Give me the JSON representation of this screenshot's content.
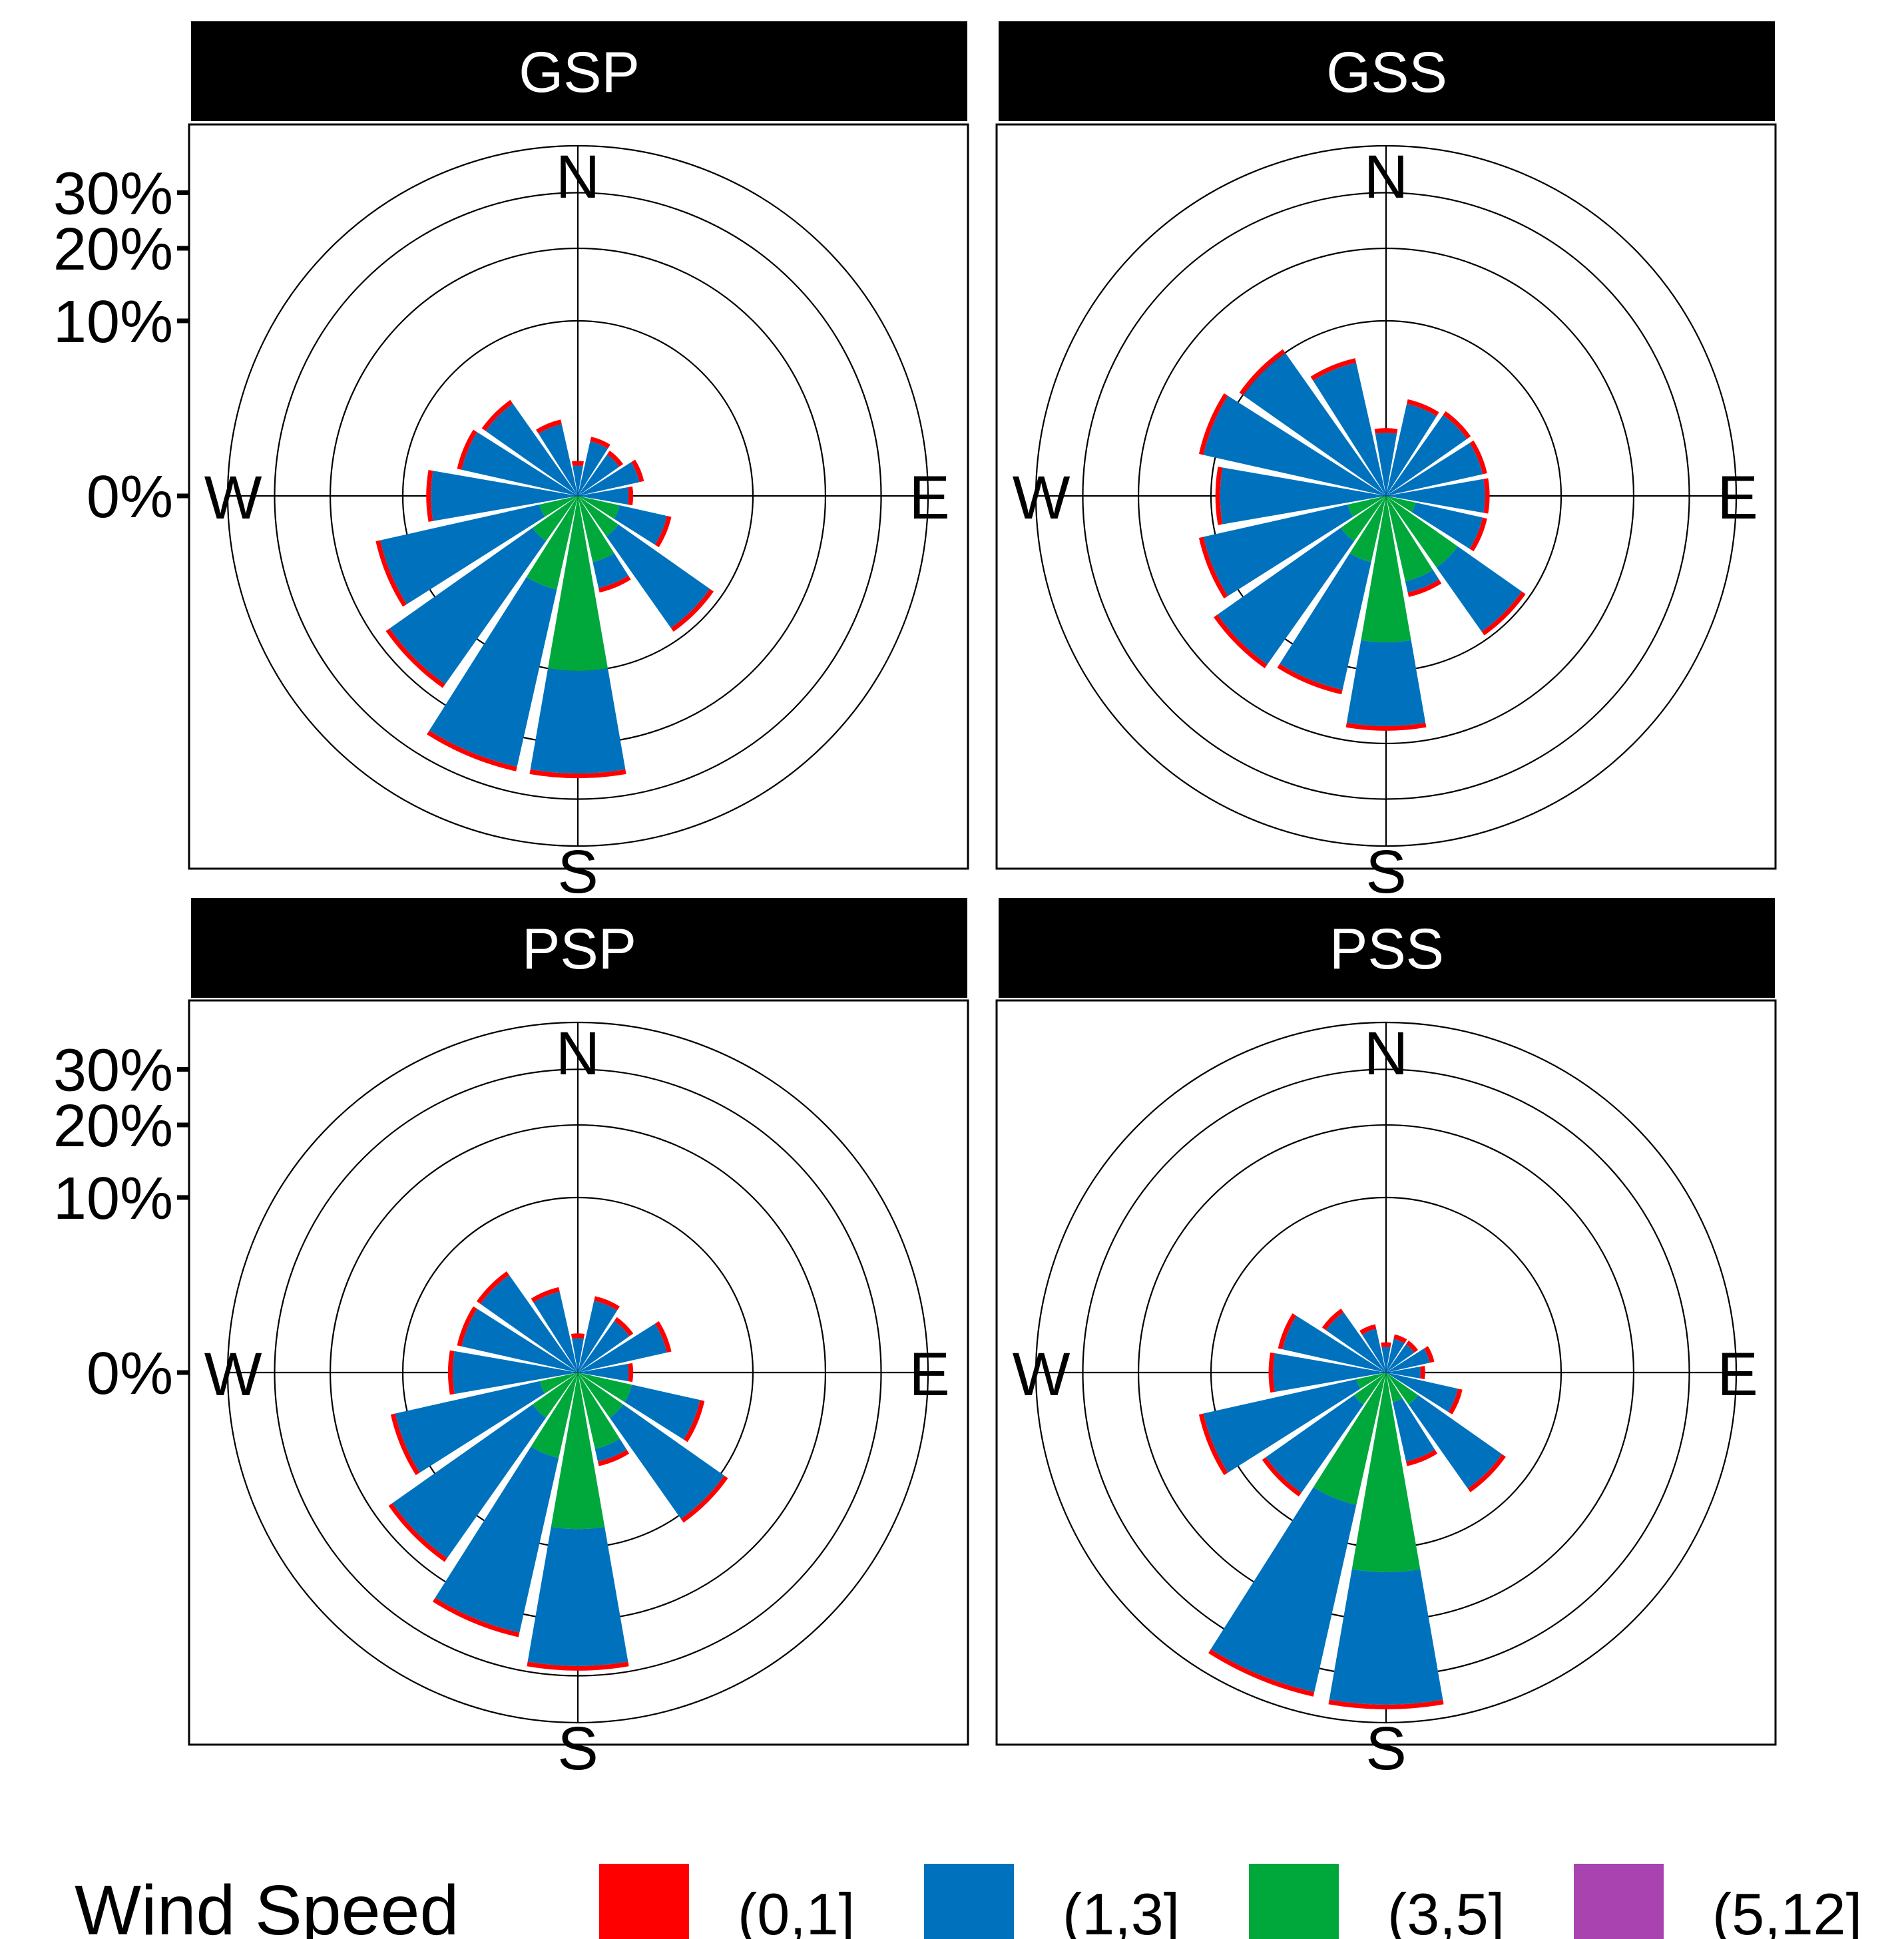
{
  "chart_data": {
    "type": "wind-rose",
    "facets": [
      {
        "name": "GSP",
        "bins": [
          {
            "dir": "N",
            "total": 0.4,
            "green": 0.0
          },
          {
            "dir": "NNE",
            "total": 1.2,
            "green": 0.0
          },
          {
            "dir": "NE",
            "total": 1.0,
            "green": 0.0
          },
          {
            "dir": "ENE",
            "total": 1.5,
            "green": 0.0
          },
          {
            "dir": "E",
            "total": 1.0,
            "green": 0.0
          },
          {
            "dir": "ESE",
            "total": 3.0,
            "green": 0.6
          },
          {
            "dir": "SE",
            "total": 9.0,
            "green": 0.8
          },
          {
            "dir": "SSE",
            "total": 3.2,
            "green": 1.5
          },
          {
            "dir": "S",
            "total": 26.0,
            "green": 10.0
          },
          {
            "dir": "SSW",
            "total": 26.0,
            "green": 3.0
          },
          {
            "dir": "SW",
            "total": 18.0,
            "green": 1.0
          },
          {
            "dir": "WSW",
            "total": 14.0,
            "green": 0.5
          },
          {
            "dir": "W",
            "total": 7.5,
            "green": 0.0
          },
          {
            "dir": "WNW",
            "total": 5.0,
            "green": 0.0
          },
          {
            "dir": "NW",
            "total": 4.5,
            "green": 0.0
          },
          {
            "dir": "NNW",
            "total": 2.0,
            "green": 0.0
          }
        ]
      },
      {
        "name": "GSS",
        "bins": [
          {
            "dir": "N",
            "total": 1.5,
            "green": 0.0
          },
          {
            "dir": "NNE",
            "total": 3.2,
            "green": 0.0
          },
          {
            "dir": "NE",
            "total": 3.5,
            "green": 0.0
          },
          {
            "dir": "ENE",
            "total": 3.5,
            "green": 0.0
          },
          {
            "dir": "E",
            "total": 3.5,
            "green": 0.0
          },
          {
            "dir": "ESE",
            "total": 3.5,
            "green": 0.3
          },
          {
            "dir": "SE",
            "total": 9.5,
            "green": 2.5
          },
          {
            "dir": "SSE",
            "total": 3.5,
            "green": 2.5
          },
          {
            "dir": "S",
            "total": 18.0,
            "green": 7.0
          },
          {
            "dir": "SSW",
            "total": 13.5,
            "green": 1.5
          },
          {
            "dir": "SW",
            "total": 14.5,
            "green": 1.0
          },
          {
            "dir": "WSW",
            "total": 12.0,
            "green": 0.5
          },
          {
            "dir": "W",
            "total": 9.5,
            "green": 0.0
          },
          {
            "dir": "WNW",
            "total": 12.0,
            "green": 0.0
          },
          {
            "dir": "NW",
            "total": 10.5,
            "green": 0.0
          },
          {
            "dir": "NNW",
            "total": 6.5,
            "green": 0.0
          }
        ]
      },
      {
        "name": "PSP",
        "bins": [
          {
            "dir": "N",
            "total": 0.5,
            "green": 0.0
          },
          {
            "dir": "NNE",
            "total": 2.0,
            "green": 0.0
          },
          {
            "dir": "NE",
            "total": 1.5,
            "green": 0.0
          },
          {
            "dir": "ENE",
            "total": 3.0,
            "green": 0.0
          },
          {
            "dir": "E",
            "total": 1.0,
            "green": 0.0
          },
          {
            "dir": "ESE",
            "total": 5.5,
            "green": 1.0
          },
          {
            "dir": "SE",
            "total": 11.0,
            "green": 1.0
          },
          {
            "dir": "SSE",
            "total": 3.0,
            "green": 2.0
          },
          {
            "dir": "S",
            "total": 29.0,
            "green": 8.0
          },
          {
            "dir": "SSW",
            "total": 24.0,
            "green": 2.5
          },
          {
            "dir": "SW",
            "total": 17.5,
            "green": 1.0
          },
          {
            "dir": "WSW",
            "total": 12.0,
            "green": 0.5
          },
          {
            "dir": "W",
            "total": 5.5,
            "green": 0.0
          },
          {
            "dir": "WNW",
            "total": 5.0,
            "green": 0.0
          },
          {
            "dir": "NW",
            "total": 5.0,
            "green": 0.0
          },
          {
            "dir": "NNW",
            "total": 2.5,
            "green": 0.0
          }
        ]
      },
      {
        "name": "PSS",
        "bins": [
          {
            "dir": "N",
            "total": 0.3,
            "green": 0.0
          },
          {
            "dir": "NNE",
            "total": 0.5,
            "green": 0.0
          },
          {
            "dir": "NE",
            "total": 0.5,
            "green": 0.0
          },
          {
            "dir": "ENE",
            "total": 0.8,
            "green": 0.0
          },
          {
            "dir": "E",
            "total": 0.5,
            "green": 0.0
          },
          {
            "dir": "ESE",
            "total": 2.0,
            "green": 0.0
          },
          {
            "dir": "SE",
            "total": 7.0,
            "green": 0.5
          },
          {
            "dir": "SSE",
            "total": 3.0,
            "green": 0.3
          },
          {
            "dir": "S",
            "total": 37.0,
            "green": 13.0
          },
          {
            "dir": "SSW",
            "total": 36.0,
            "green": 6.0
          },
          {
            "dir": "SW",
            "total": 7.5,
            "green": 0.5
          },
          {
            "dir": "WSW",
            "total": 12.0,
            "green": 0.3
          },
          {
            "dir": "W",
            "total": 4.5,
            "green": 0.0
          },
          {
            "dir": "WNW",
            "total": 4.0,
            "green": 0.0
          },
          {
            "dir": "NW",
            "total": 2.0,
            "green": 0.0
          },
          {
            "dir": "NNW",
            "total": 0.8,
            "green": 0.0
          }
        ]
      }
    ],
    "radial_ticks": [
      "0%",
      "10%",
      "20%",
      "30%"
    ],
    "radial_tick_values": [
      0,
      10,
      20,
      30
    ],
    "grid_circles": [
      0,
      10,
      20,
      30,
      40
    ],
    "compass_labels": [
      "N",
      "E",
      "S",
      "W"
    ],
    "legend": {
      "title": "Wind Speed",
      "position": "bottom",
      "items": [
        {
          "label": "(0,1]",
          "color": "#FF0000"
        },
        {
          "label": "(1,3]",
          "color": "#0072BD"
        },
        {
          "label": "(3,5]",
          "color": "#00A83C"
        },
        {
          "label": "(5,12]",
          "color": "#A843B0"
        }
      ]
    },
    "red_band_width": 0.6
  }
}
